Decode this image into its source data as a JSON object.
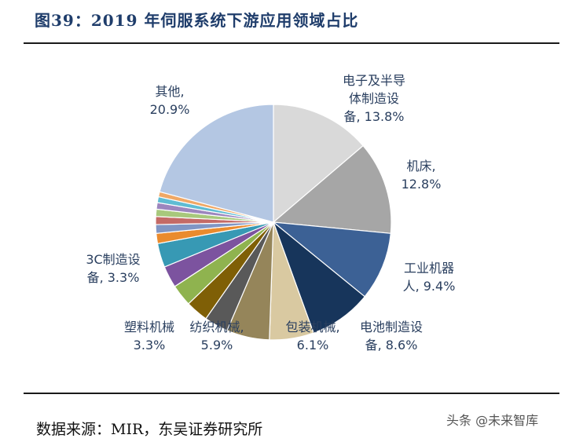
{
  "title": "图39：2019 年伺服系统下游应用领域占比",
  "source": "数据来源：MIR，东吴证券研究所",
  "watermark": "头条 @未来智库",
  "chart_data": {
    "type": "pie",
    "title": "2019 年伺服系统下游应用领域占比",
    "unit": "%",
    "start": "12 o'clock",
    "direction": "clockwise",
    "slices": [
      {
        "name": "电子及半导体制造设备",
        "value": 13.8,
        "color": "#d9d9d9",
        "label_lines": [
          "电子及半导",
          "体制造设",
          "备, 13.8%"
        ]
      },
      {
        "name": "机床",
        "value": 12.8,
        "color": "#a6a6a6",
        "label_lines": [
          "机床,",
          "12.8%"
        ]
      },
      {
        "name": "工业机器人",
        "value": 9.4,
        "color": "#3c6195",
        "label_lines": [
          "工业机器",
          "人, 9.4%"
        ]
      },
      {
        "name": "电池制造设备",
        "value": 8.6,
        "color": "#17355b",
        "label_lines": [
          "电池制造设",
          "备, 8.6%"
        ]
      },
      {
        "name": "包装机械",
        "value": 6.1,
        "color": "#d9c9a1",
        "label_lines": [
          "包装机械,",
          "6.1%"
        ]
      },
      {
        "name": "纺织机械",
        "value": 5.9,
        "color": "#95855a",
        "label_lines": [
          "纺织机械,",
          "5.9%"
        ]
      },
      {
        "name": "塑料机械",
        "value": 3.3,
        "color": "#595959",
        "label_lines": [
          "塑料机械",
          "3.3%"
        ]
      },
      {
        "name": "slice-8",
        "value": 3.1,
        "color": "#7f5f06",
        "label_lines": []
      },
      {
        "name": "slice-9",
        "value": 3.0,
        "color": "#8fb34f",
        "label_lines": []
      },
      {
        "name": "slice-10",
        "value": 3.0,
        "color": "#7c539f",
        "label_lines": []
      },
      {
        "name": "3C制造设备",
        "value": 3.3,
        "color": "#3799b4",
        "label_lines": [
          "3C制造设",
          "备, 3.3%"
        ]
      },
      {
        "name": "slice-12",
        "value": 1.4,
        "color": "#ea8b2e",
        "label_lines": []
      },
      {
        "name": "slice-13",
        "value": 1.2,
        "color": "#8096c4",
        "label_lines": []
      },
      {
        "name": "slice-14",
        "value": 1.1,
        "color": "#c46a66",
        "label_lines": []
      },
      {
        "name": "slice-15",
        "value": 1.0,
        "color": "#a8c87c",
        "label_lines": []
      },
      {
        "name": "slice-16",
        "value": 0.9,
        "color": "#9c86be",
        "label_lines": []
      },
      {
        "name": "slice-17",
        "value": 0.8,
        "color": "#5fbcd3",
        "label_lines": []
      },
      {
        "name": "slice-18",
        "value": 0.7,
        "color": "#f0a865",
        "label_lines": []
      },
      {
        "name": "其他",
        "value": 20.9,
        "color": "#b4c7e3",
        "label_lines": [
          "其他,",
          "20.9%"
        ]
      }
    ]
  }
}
